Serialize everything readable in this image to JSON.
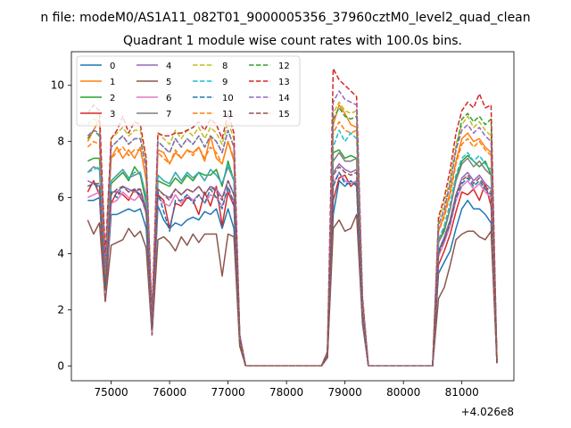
{
  "figure": {
    "suptitle": "n file: modeM0/AS1A11_082T01_9000005356_37960cztM0_level2_quad_clean",
    "offset_label": "+4.026e8"
  },
  "chart_data": {
    "type": "line",
    "title": "Quadrant 1 module wise count rates with 100.0s bins.",
    "xlabel": "",
    "ylabel": "",
    "x_offset": 402600000,
    "xlim": [
      74320,
      81890
    ],
    "ylim": [
      -0.53,
      11.2
    ],
    "x_ticks": [
      75000,
      76000,
      77000,
      78000,
      79000,
      80000,
      81000
    ],
    "y_ticks": [
      0,
      2,
      4,
      6,
      8,
      10
    ],
    "grid": false,
    "legend": "top-left, 4 columns",
    "x": [
      74600,
      74700,
      74800,
      74900,
      75000,
      75100,
      75200,
      75300,
      75400,
      75500,
      75600,
      75700,
      75800,
      75900,
      76000,
      76100,
      76200,
      76300,
      76400,
      76500,
      76600,
      76700,
      76800,
      76900,
      77000,
      77100,
      77200,
      77300,
      77400,
      77500,
      77600,
      77700,
      77800,
      77900,
      78000,
      78100,
      78200,
      78300,
      78400,
      78500,
      78600,
      78700,
      78800,
      78900,
      79000,
      79100,
      79200,
      79300,
      79400,
      79500,
      79600,
      79700,
      79800,
      79900,
      80000,
      80100,
      80200,
      80300,
      80400,
      80500,
      80600,
      80700,
      80800,
      80900,
      81000,
      81100,
      81200,
      81300,
      81400,
      81500,
      81600
    ],
    "series": [
      {
        "name": "0",
        "color": "#1f77b4",
        "dash": "solid",
        "values": [
          5.9,
          5.9,
          6.0,
          2.4,
          5.4,
          5.4,
          5.5,
          5.6,
          5.5,
          5.6,
          4.9,
          1.1,
          5.7,
          5.2,
          4.9,
          5.1,
          5.0,
          5.2,
          5.3,
          5.2,
          5.5,
          5.4,
          5.6,
          4.9,
          5.6,
          4.9,
          0.8,
          0,
          0,
          0,
          0,
          0,
          0,
          0,
          0,
          0,
          0,
          0,
          0,
          0,
          0,
          0.3,
          5.4,
          6.6,
          6.4,
          6.6,
          6.4,
          1.6,
          0,
          0,
          0,
          0,
          0,
          0,
          0,
          0,
          0,
          0,
          0,
          0,
          3.3,
          3.7,
          4.1,
          4.9,
          5.6,
          5.9,
          5.6,
          5.6,
          5.4,
          5.1,
          0.1
        ]
      },
      {
        "name": "1",
        "color": "#ff7f0e",
        "dash": "solid",
        "values": [
          8.0,
          8.4,
          8.8,
          3.8,
          7.4,
          7.8,
          7.4,
          7.7,
          7.4,
          7.8,
          6.6,
          1.6,
          7.7,
          7.6,
          7.2,
          7.6,
          7.4,
          7.7,
          7.6,
          7.8,
          7.3,
          8.2,
          7.4,
          7.2,
          8.0,
          7.3,
          1.0,
          0,
          0,
          0,
          0,
          0,
          0,
          0,
          0,
          0,
          0,
          0,
          0,
          0,
          0,
          0.5,
          8.6,
          9.3,
          9.0,
          8.6,
          8.5,
          2.2,
          0,
          0,
          0,
          0,
          0,
          0,
          0,
          0,
          0,
          0,
          0,
          0,
          4.8,
          5.4,
          6.2,
          7.3,
          8.1,
          8.3,
          8.0,
          8.1,
          7.8,
          7.6,
          0.15
        ]
      },
      {
        "name": "2",
        "color": "#2ca02c",
        "dash": "solid",
        "values": [
          7.3,
          7.4,
          7.4,
          3.2,
          6.5,
          6.7,
          6.9,
          6.6,
          7.1,
          6.8,
          5.8,
          1.4,
          6.6,
          6.5,
          6.4,
          6.7,
          6.5,
          6.8,
          6.6,
          6.9,
          6.8,
          6.8,
          7.0,
          6.4,
          7.3,
          6.6,
          0.9,
          0,
          0,
          0,
          0,
          0,
          0,
          0,
          0,
          0,
          0,
          0,
          0,
          0,
          0,
          0.4,
          7.6,
          7.7,
          7.4,
          7.5,
          7.4,
          1.9,
          0,
          0,
          0,
          0,
          0,
          0,
          0,
          0,
          0,
          0,
          0,
          0,
          4.4,
          4.8,
          5.6,
          6.7,
          7.3,
          7.5,
          7.3,
          7.1,
          7.3,
          6.8,
          0.15
        ]
      },
      {
        "name": "3",
        "color": "#d62728",
        "dash": "solid",
        "values": [
          6.2,
          6.6,
          6.1,
          2.3,
          5.8,
          6.2,
          6.1,
          5.9,
          6.3,
          6.0,
          5.6,
          1.3,
          6.1,
          5.9,
          4.9,
          5.8,
          5.7,
          6.0,
          5.9,
          5.4,
          6.2,
          5.7,
          6.4,
          5.0,
          6.2,
          5.7,
          0.8,
          0,
          0,
          0,
          0,
          0,
          0,
          0,
          0,
          0,
          0,
          0,
          0,
          0,
          0,
          0.3,
          5.9,
          6.7,
          6.8,
          6.4,
          6.6,
          1.7,
          0,
          0,
          0,
          0,
          0,
          0,
          0,
          0,
          0,
          0,
          0,
          0,
          3.6,
          4.1,
          4.7,
          5.5,
          6.2,
          6.1,
          6.3,
          5.9,
          6.5,
          5.7,
          0.1
        ]
      },
      {
        "name": "4",
        "color": "#9467bd",
        "dash": "solid",
        "values": [
          6.6,
          6.5,
          6.4,
          2.8,
          6.2,
          6.2,
          6.4,
          6.3,
          6.2,
          6.3,
          5.6,
          1.3,
          6.3,
          6.1,
          6.0,
          6.3,
          6.1,
          6.3,
          6.2,
          6.4,
          6.1,
          6.4,
          6.3,
          6.0,
          6.6,
          6.1,
          0.9,
          0,
          0,
          0,
          0,
          0,
          0,
          0,
          0,
          0,
          0,
          0,
          0,
          0,
          0,
          0.4,
          6.9,
          7.2,
          7.0,
          6.9,
          7.0,
          1.8,
          0,
          0,
          0,
          0,
          0,
          0,
          0,
          0,
          0,
          0,
          0,
          0,
          4.1,
          4.6,
          5.2,
          6.1,
          6.7,
          6.9,
          6.6,
          6.8,
          6.5,
          6.3,
          0.12
        ]
      },
      {
        "name": "5",
        "color": "#8c564b",
        "dash": "solid",
        "values": [
          5.2,
          4.7,
          5.1,
          2.3,
          4.3,
          4.4,
          4.5,
          4.9,
          4.6,
          4.8,
          4.2,
          1.1,
          4.5,
          4.6,
          4.4,
          4.1,
          4.6,
          4.3,
          4.7,
          4.4,
          4.7,
          4.7,
          4.7,
          3.2,
          4.7,
          4.6,
          0.7,
          0,
          0,
          0,
          0,
          0,
          0,
          0,
          0,
          0,
          0,
          0,
          0,
          0,
          0,
          0.3,
          4.9,
          5.2,
          4.8,
          4.9,
          5.4,
          1.5,
          0,
          0,
          0,
          0,
          0,
          0,
          0,
          0,
          0,
          0,
          0,
          0,
          2.4,
          2.8,
          3.6,
          4.5,
          4.7,
          4.8,
          4.8,
          4.6,
          4.5,
          4.8,
          0.1
        ]
      },
      {
        "name": "6",
        "color": "#e377c2",
        "dash": "solid",
        "values": [
          6.0,
          6.1,
          6.2,
          2.6,
          5.8,
          5.9,
          6.2,
          6.0,
          5.9,
          6.1,
          5.4,
          1.2,
          6.0,
          5.8,
          5.7,
          6.1,
          5.8,
          6.1,
          5.9,
          6.1,
          5.8,
          6.1,
          6.0,
          5.7,
          6.3,
          5.8,
          0.9,
          0,
          0,
          0,
          0,
          0,
          0,
          0,
          0,
          0,
          0,
          0,
          0,
          0,
          0,
          0.4,
          6.5,
          6.9,
          6.6,
          6.5,
          6.6,
          1.7,
          0,
          0,
          0,
          0,
          0,
          0,
          0,
          0,
          0,
          0,
          0,
          0,
          3.9,
          4.4,
          5.0,
          5.9,
          6.4,
          6.6,
          6.3,
          6.5,
          6.2,
          6.0,
          0.12
        ]
      },
      {
        "name": "7",
        "color": "#7f7f7f",
        "dash": "solid",
        "values": [
          6.9,
          7.1,
          7.0,
          2.9,
          6.6,
          6.8,
          7.0,
          6.7,
          6.8,
          6.9,
          6.0,
          1.4,
          6.8,
          6.6,
          6.5,
          6.9,
          6.6,
          6.9,
          6.7,
          6.9,
          6.6,
          7.0,
          6.8,
          6.5,
          7.1,
          6.6,
          0.9,
          0,
          0,
          0,
          0,
          0,
          0,
          0,
          0,
          0,
          0,
          0,
          0,
          0,
          0,
          0.4,
          7.3,
          7.6,
          7.3,
          7.3,
          7.4,
          1.9,
          0,
          0,
          0,
          0,
          0,
          0,
          0,
          0,
          0,
          0,
          0,
          0,
          4.4,
          4.9,
          5.6,
          6.6,
          7.2,
          7.4,
          7.1,
          7.3,
          7.0,
          6.8,
          0.13
        ]
      },
      {
        "name": "8",
        "color": "#bcbd22",
        "dash": "dashed",
        "values": [
          8.6,
          8.8,
          8.7,
          3.6,
          8.1,
          8.3,
          8.5,
          8.2,
          8.4,
          8.4,
          7.3,
          1.7,
          8.3,
          8.1,
          7.9,
          8.4,
          8.1,
          8.4,
          8.2,
          8.5,
          8.1,
          8.5,
          8.3,
          7.9,
          8.7,
          8.1,
          1.1,
          0,
          0,
          0,
          0,
          0,
          0,
          0,
          0,
          0,
          0,
          0,
          0,
          0,
          0,
          0.5,
          9.0,
          9.4,
          9.1,
          9.0,
          9.1,
          2.3,
          0,
          0,
          0,
          0,
          0,
          0,
          0,
          0,
          0,
          0,
          0,
          0,
          5.2,
          5.8,
          6.7,
          7.9,
          8.6,
          8.9,
          8.5,
          8.7,
          8.4,
          8.2,
          0.16
        ]
      },
      {
        "name": "9",
        "color": "#17becf",
        "dash": "dashed",
        "values": [
          6.9,
          7.0,
          7.1,
          3.0,
          6.6,
          6.8,
          7.0,
          6.7,
          6.9,
          6.9,
          6.0,
          1.4,
          6.8,
          6.6,
          6.5,
          6.9,
          6.6,
          6.9,
          6.7,
          6.9,
          6.6,
          7.0,
          6.8,
          6.5,
          7.2,
          6.6,
          0.9,
          0,
          0,
          0,
          0,
          0,
          0,
          0,
          0,
          0,
          0,
          0,
          0,
          0,
          0,
          0.4,
          7.8,
          8.4,
          8.0,
          8.3,
          8.1,
          2.0,
          0,
          0,
          0,
          0,
          0,
          0,
          0,
          0,
          0,
          0,
          0,
          0,
          4.5,
          5.0,
          5.8,
          6.8,
          7.4,
          7.6,
          7.3,
          7.5,
          7.2,
          7.0,
          0.13
        ]
      },
      {
        "name": "10",
        "color": "#1f77b4",
        "dash": "dashed",
        "values": [
          6.4,
          6.5,
          6.3,
          2.7,
          6.2,
          6.0,
          6.4,
          6.2,
          6.3,
          6.1,
          5.5,
          1.3,
          6.2,
          5.5,
          4.8,
          5.9,
          5.9,
          6.1,
          5.8,
          6.1,
          5.8,
          6.3,
          6.0,
          5.6,
          6.4,
          5.8,
          0.9,
          0,
          0,
          0,
          0,
          0,
          0,
          0,
          0,
          0,
          0,
          0,
          0,
          0,
          0,
          0.4,
          6.4,
          6.9,
          6.5,
          6.5,
          6.5,
          1.7,
          0,
          0,
          0,
          0,
          0,
          0,
          0,
          0,
          0,
          0,
          0,
          0,
          4.1,
          4.5,
          5.1,
          6.0,
          6.5,
          6.7,
          6.4,
          6.6,
          6.3,
          6.1,
          0.12
        ]
      },
      {
        "name": "11",
        "color": "#ff7f0e",
        "dash": "dashed",
        "values": [
          7.8,
          8.0,
          7.9,
          3.3,
          7.4,
          7.6,
          7.8,
          7.5,
          7.7,
          7.7,
          6.7,
          1.6,
          7.6,
          7.4,
          7.2,
          7.7,
          7.4,
          7.7,
          7.5,
          7.8,
          7.4,
          7.8,
          7.6,
          7.2,
          8.0,
          7.4,
          1.0,
          0,
          0,
          0,
          0,
          0,
          0,
          0,
          0,
          0,
          0,
          0,
          0,
          0,
          0,
          0.5,
          8.3,
          8.7,
          8.4,
          8.3,
          8.4,
          2.1,
          0,
          0,
          0,
          0,
          0,
          0,
          0,
          0,
          0,
          0,
          0,
          0,
          4.8,
          5.3,
          6.1,
          7.2,
          7.9,
          8.1,
          7.8,
          8.0,
          7.7,
          7.5,
          0.15
        ]
      },
      {
        "name": "12",
        "color": "#2ca02c",
        "dash": "dashed",
        "values": [
          8.1,
          8.4,
          8.2,
          3.5,
          7.8,
          8.0,
          8.2,
          7.9,
          8.1,
          8.1,
          7.0,
          1.6,
          8.0,
          7.8,
          7.6,
          8.1,
          7.8,
          8.1,
          7.9,
          8.2,
          7.8,
          8.2,
          8.0,
          7.6,
          8.4,
          7.8,
          1.1,
          0,
          0,
          0,
          0,
          0,
          0,
          0,
          0,
          0,
          0,
          0,
          0,
          0,
          0,
          0.5,
          8.8,
          9.2,
          8.9,
          8.8,
          8.9,
          2.3,
          0,
          0,
          0,
          0,
          0,
          0,
          0,
          0,
          0,
          0,
          0,
          0,
          5.0,
          5.6,
          6.5,
          7.7,
          8.8,
          9.0,
          8.7,
          8.9,
          8.6,
          8.8,
          0.16
        ]
      },
      {
        "name": "13",
        "color": "#d62728",
        "dash": "dashed",
        "values": [
          9.0,
          9.3,
          9.1,
          3.9,
          8.1,
          8.4,
          8.9,
          8.3,
          8.7,
          8.6,
          7.4,
          1.8,
          8.3,
          8.2,
          8.2,
          8.3,
          8.3,
          8.4,
          8.5,
          8.7,
          8.4,
          8.8,
          8.6,
          8.1,
          9.0,
          8.3,
          1.1,
          0,
          0,
          0,
          0,
          0,
          0,
          0,
          0,
          0,
          0,
          0,
          0,
          0,
          0,
          0.5,
          10.6,
          10.2,
          10.0,
          9.8,
          9.6,
          2.5,
          0,
          0,
          0,
          0,
          0,
          0,
          0,
          0,
          0,
          0,
          0,
          0,
          5.3,
          6.0,
          7.0,
          8.3,
          9.1,
          9.4,
          9.2,
          9.7,
          9.2,
          9.3,
          0.17
        ]
      },
      {
        "name": "14",
        "color": "#9467bd",
        "dash": "dashed",
        "values": [
          8.2,
          8.4,
          8.3,
          3.5,
          7.8,
          8.0,
          8.2,
          7.9,
          8.1,
          8.1,
          7.0,
          1.6,
          8.0,
          7.8,
          7.6,
          8.1,
          7.8,
          8.1,
          7.9,
          8.2,
          7.8,
          8.2,
          8.0,
          7.6,
          8.4,
          7.8,
          1.1,
          0,
          0,
          0,
          0,
          0,
          0,
          0,
          0,
          0,
          0,
          0,
          0,
          0,
          0,
          0.5,
          9.4,
          9.8,
          9.5,
          9.4,
          9.3,
          2.4,
          0,
          0,
          0,
          0,
          0,
          0,
          0,
          0,
          0,
          0,
          0,
          0,
          5.0,
          5.6,
          6.5,
          7.7,
          8.4,
          8.6,
          8.3,
          8.5,
          8.2,
          8.0,
          0.16
        ]
      },
      {
        "name": "15",
        "color": "#8c564b",
        "dash": "dashed",
        "values": [
          6.4,
          6.5,
          6.5,
          2.7,
          6.1,
          6.3,
          6.4,
          6.2,
          6.3,
          6.3,
          5.5,
          1.3,
          6.3,
          6.1,
          5.9,
          6.3,
          6.1,
          6.3,
          6.2,
          6.4,
          6.1,
          6.4,
          6.2,
          5.9,
          6.6,
          6.1,
          0.9,
          0,
          0,
          0,
          0,
          0,
          0,
          0,
          0,
          0,
          0,
          0,
          0,
          0,
          0,
          0.4,
          6.8,
          7.1,
          6.9,
          6.8,
          6.9,
          1.8,
          0,
          0,
          0,
          0,
          0,
          0,
          0,
          0,
          0,
          0,
          0,
          0,
          4.0,
          4.5,
          5.2,
          6.1,
          6.6,
          6.8,
          6.5,
          6.7,
          6.4,
          6.2,
          0.12
        ]
      }
    ]
  }
}
